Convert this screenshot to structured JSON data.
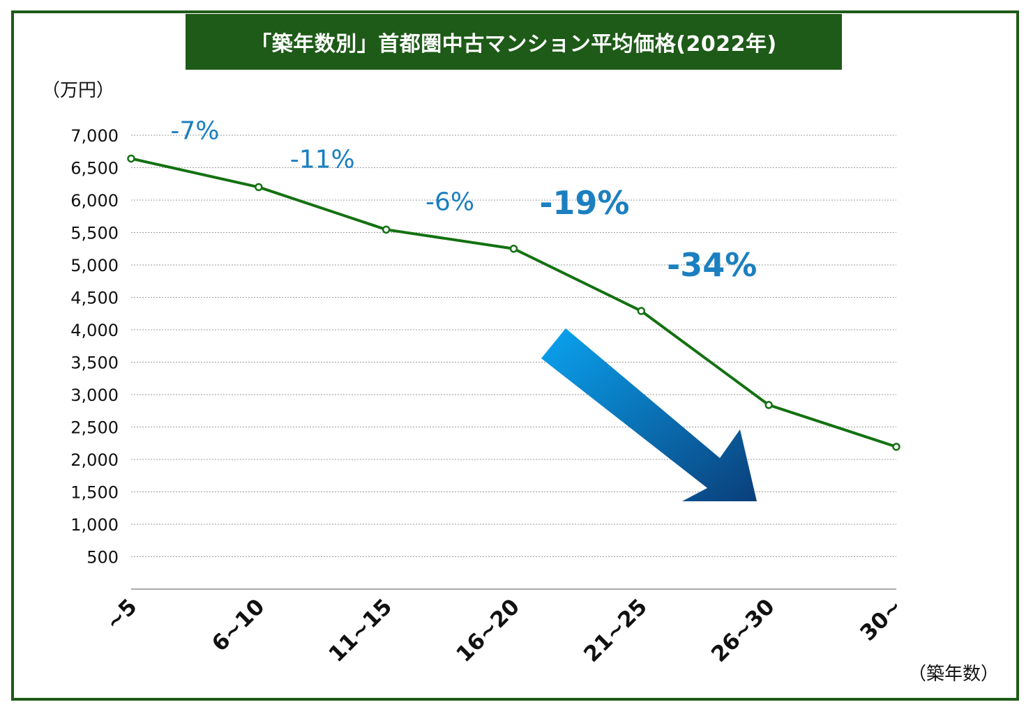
{
  "chart_data": {
    "type": "line",
    "title": "「築年数別」首都圏中古マンション平均価格(2022年)",
    "ylabel": "（万円）",
    "xlabel": "（築年数）",
    "categories": [
      "~5",
      "6~10",
      "11~15",
      "16~20",
      "21~25",
      "26~30",
      "30~"
    ],
    "series": [
      {
        "values": [
          6640,
          6200,
          5545,
          5250,
          4290,
          2840,
          2195
        ]
      }
    ],
    "ylim": [
      0,
      7000
    ],
    "yticks": [
      500,
      1000,
      1500,
      2000,
      2500,
      3000,
      3500,
      4000,
      4500,
      5000,
      5500,
      6000,
      6500,
      7000
    ],
    "ytick_labels": [
      "500",
      "1,000",
      "1,500",
      "2,000",
      "2,500",
      "3,000",
      "3,500",
      "4,000",
      "4,500",
      "5,000",
      "5,500",
      "6,000",
      "6,500",
      "7,000"
    ],
    "grid": true,
    "annotations": [
      {
        "text": "-7%",
        "between": [
          0,
          1
        ],
        "emphasis": false
      },
      {
        "text": "-11%",
        "between": [
          1,
          2
        ],
        "emphasis": false
      },
      {
        "text": "-6%",
        "between": [
          2,
          3
        ],
        "emphasis": false
      },
      {
        "text": "-19%",
        "between": [
          3,
          4
        ],
        "emphasis": true
      },
      {
        "text": "-34%",
        "between": [
          4,
          5
        ],
        "emphasis": true
      }
    ],
    "colors": {
      "line": "#137111",
      "frame": "#1e5a18",
      "annotation": "#1b7fc0",
      "arrow_start": "#0aa4f0",
      "arrow_end": "#0a3f7a"
    }
  }
}
